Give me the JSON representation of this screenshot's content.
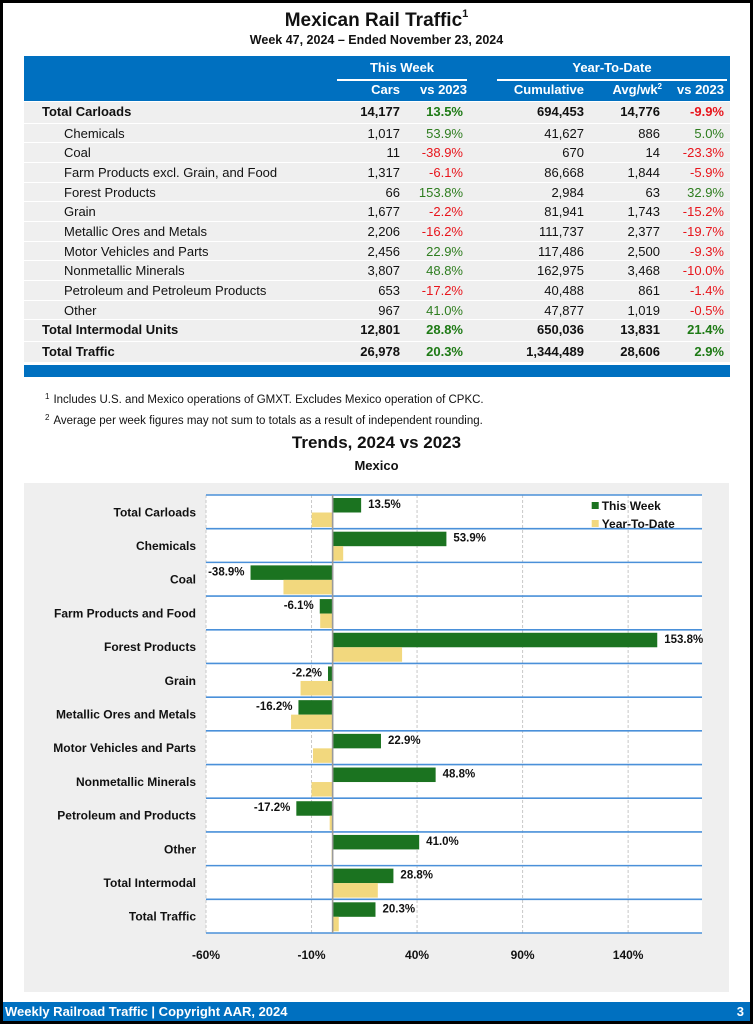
{
  "header": {
    "title": "Mexican Rail Traffic",
    "title_footnote": "1",
    "subtitle": "Week 47, 2024 – Ended November 23, 2024"
  },
  "table": {
    "group_this_week": "This Week",
    "group_ytd": "Year-To-Date",
    "columns": {
      "cars": "Cars",
      "vs2023_week": "vs 2023",
      "cumulative": "Cumulative",
      "avgwk": "Avg/wk",
      "avgwk_footnote": "2",
      "vs2023_ytd": "vs 2023"
    },
    "rows": [
      {
        "label": "Total Carloads",
        "type": "total",
        "cars": "14,177",
        "week_vs": "13.5%",
        "cumulative": "694,453",
        "avgwk": "14,776",
        "ytd_vs": "-9.9%"
      },
      {
        "label": "Chemicals",
        "type": "sub",
        "cars": "1,017",
        "week_vs": "53.9%",
        "cumulative": "41,627",
        "avgwk": "886",
        "ytd_vs": "5.0%"
      },
      {
        "label": "Coal",
        "type": "sub",
        "cars": "11",
        "week_vs": "-38.9%",
        "cumulative": "670",
        "avgwk": "14",
        "ytd_vs": "-23.3%"
      },
      {
        "label": "Farm Products excl. Grain, and Food",
        "type": "sub",
        "cars": "1,317",
        "week_vs": "-6.1%",
        "cumulative": "86,668",
        "avgwk": "1,844",
        "ytd_vs": "-5.9%"
      },
      {
        "label": "Forest Products",
        "type": "sub",
        "cars": "66",
        "week_vs": "153.8%",
        "cumulative": "2,984",
        "avgwk": "63",
        "ytd_vs": "32.9%"
      },
      {
        "label": "Grain",
        "type": "sub",
        "cars": "1,677",
        "week_vs": "-2.2%",
        "cumulative": "81,941",
        "avgwk": "1,743",
        "ytd_vs": "-15.2%"
      },
      {
        "label": "Metallic Ores and Metals",
        "type": "sub",
        "cars": "2,206",
        "week_vs": "-16.2%",
        "cumulative": "111,737",
        "avgwk": "2,377",
        "ytd_vs": "-19.7%"
      },
      {
        "label": "Motor Vehicles and Parts",
        "type": "sub",
        "cars": "2,456",
        "week_vs": "22.9%",
        "cumulative": "117,486",
        "avgwk": "2,500",
        "ytd_vs": "-9.3%"
      },
      {
        "label": "Nonmetallic Minerals",
        "type": "sub",
        "cars": "3,807",
        "week_vs": "48.8%",
        "cumulative": "162,975",
        "avgwk": "3,468",
        "ytd_vs": "-10.0%"
      },
      {
        "label": "Petroleum and Petroleum Products",
        "type": "sub",
        "cars": "653",
        "week_vs": "-17.2%",
        "cumulative": "40,488",
        "avgwk": "861",
        "ytd_vs": "-1.4%"
      },
      {
        "label": "Other",
        "type": "sub",
        "cars": "967",
        "week_vs": "41.0%",
        "cumulative": "47,877",
        "avgwk": "1,019",
        "ytd_vs": "-0.5%"
      },
      {
        "label": "Total Intermodal Units",
        "type": "total",
        "cars": "12,801",
        "week_vs": "28.8%",
        "cumulative": "650,036",
        "avgwk": "13,831",
        "ytd_vs": "21.4%"
      },
      {
        "label": "Total Traffic",
        "type": "total",
        "cars": "26,978",
        "week_vs": "20.3%",
        "cumulative": "1,344,489",
        "avgwk": "28,606",
        "ytd_vs": "2.9%"
      }
    ]
  },
  "notes": [
    {
      "mark": "1",
      "text": "Includes U.S. and Mexico operations of GMXT. Excludes Mexico operation of CPKC."
    },
    {
      "mark": "2",
      "text": "Average per week figures may not sum to totals as a result of independent rounding."
    }
  ],
  "colors": {
    "brand_blue": "#0070c0",
    "this_week": "#1b7320",
    "ytd": "#f2d87e",
    "positive": "#2e7d1f",
    "negative": "#e8141b"
  },
  "chart_data": {
    "type": "bar",
    "orientation": "horizontal",
    "title": "Trends, 2024 vs 2023",
    "subtitle": "Mexico",
    "xlabel": "",
    "ylabel": "",
    "categories": [
      "Total Carloads",
      "Chemicals",
      "Coal",
      "Farm Products and Food",
      "Forest Products",
      "Grain",
      "Metallic Ores and Metals",
      "Motor Vehicles and Parts",
      "Nonmetallic Minerals",
      "Petroleum and Products",
      "Other",
      "Total Intermodal",
      "Total Traffic"
    ],
    "series": [
      {
        "name": "This Week",
        "values": [
          13.5,
          53.9,
          -38.9,
          -6.1,
          153.8,
          -2.2,
          -16.2,
          22.9,
          48.8,
          -17.2,
          41.0,
          28.8,
          20.3
        ],
        "labels": [
          "13.5%",
          "53.9%",
          "-38.9%",
          "-6.1%",
          "153.8%",
          "-2.2%",
          "-16.2%",
          "22.9%",
          "48.8%",
          "-17.2%",
          "41.0%",
          "28.8%",
          "20.3%"
        ]
      },
      {
        "name": "Year-To-Date",
        "values": [
          -9.9,
          5.0,
          -23.3,
          -5.9,
          32.9,
          -15.2,
          -19.7,
          -9.3,
          -10.0,
          -1.4,
          -0.5,
          21.4,
          2.9
        ]
      }
    ],
    "xlim": [
      -60,
      175
    ],
    "xticks": [
      -60,
      -10,
      40,
      90,
      140
    ],
    "xtick_labels": [
      "-60%",
      "-10%",
      "40%",
      "90%",
      "140%"
    ],
    "grid": true,
    "legend": "top-right"
  },
  "footer": {
    "left": "Weekly Railroad Traffic | Copyright AAR, 2024",
    "page": "3"
  }
}
